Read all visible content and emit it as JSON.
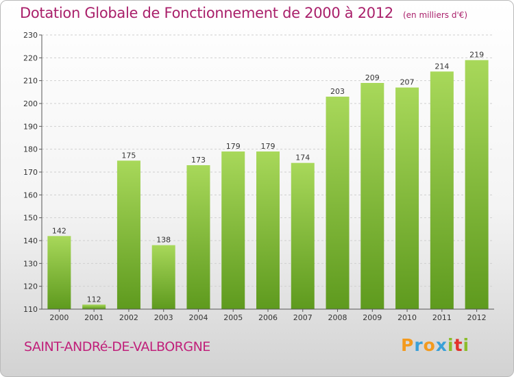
{
  "title": "Dotation Globale de Fonctionnement de 2000 à 2012",
  "subtitle": "(en milliers d'€)",
  "commune": "SAINT-ANDRé-DE-VALBORGNE",
  "logo": {
    "letters": [
      "P",
      "r",
      "o",
      "x",
      "i",
      "t",
      "i"
    ],
    "colors": [
      "#f39a1e",
      "#3aa0d8",
      "#f39a1e",
      "#3aa0d8",
      "#8bbd2a",
      "#e2312a",
      "#8bbd2a"
    ]
  },
  "colors": {
    "bar_light": "#a8d85a",
    "bar_dark": "#5e9a1e",
    "title": "#a91f6a"
  },
  "chart_data": {
    "type": "bar",
    "title": "Dotation Globale de Fonctionnement de 2000 à 2012",
    "subtitle": "(en milliers d'€)",
    "categories": [
      "2000",
      "2001",
      "2002",
      "2003",
      "2004",
      "2005",
      "2006",
      "2007",
      "2008",
      "2009",
      "2010",
      "2011",
      "2012"
    ],
    "values": [
      142,
      112,
      175,
      138,
      173,
      179,
      179,
      174,
      203,
      209,
      207,
      214,
      219
    ],
    "ylim": [
      110,
      230
    ],
    "yticks": [
      110,
      120,
      130,
      140,
      150,
      160,
      170,
      180,
      190,
      200,
      210,
      220,
      230
    ],
    "grid": true,
    "xlabel": "",
    "ylabel": ""
  }
}
